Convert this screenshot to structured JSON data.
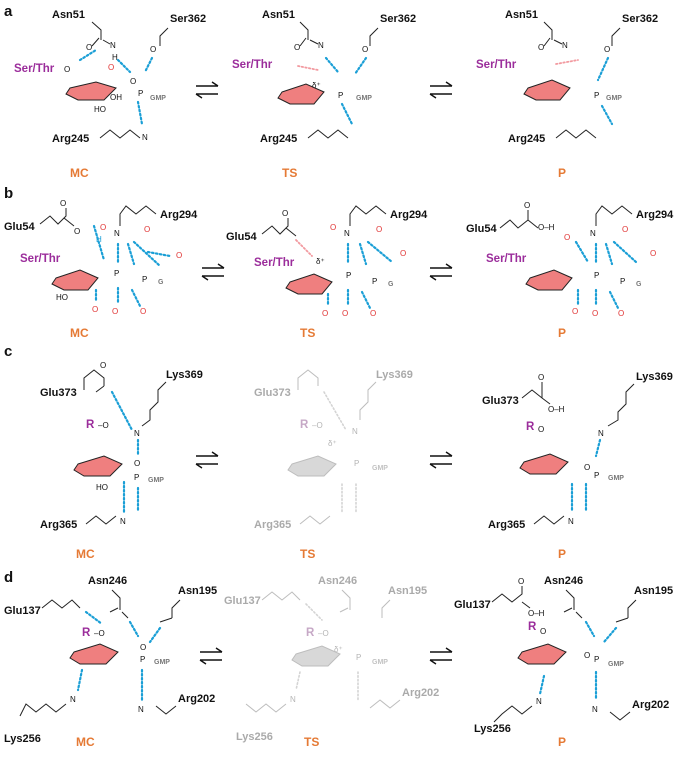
{
  "panels": {
    "a": {
      "letter": "a",
      "states": [
        "MC",
        "TS",
        "P"
      ],
      "residues": {
        "asn": "Asn51",
        "ser": "Ser362",
        "arg": "Arg245",
        "nuc": "Ser/Thr",
        "gmp": "GMP",
        "delta": "δ⁺"
      }
    },
    "b": {
      "letter": "b",
      "states": [
        "MC",
        "TS",
        "P"
      ],
      "residues": {
        "glu": "Glu54",
        "arg": "Arg294",
        "nuc": "Ser/Thr",
        "g": "G",
        "delta": "δ⁺"
      }
    },
    "c": {
      "letter": "c",
      "states": [
        "MC",
        "TS",
        "P"
      ],
      "residues": {
        "glu": "Glu373",
        "lys": "Lys369",
        "arg": "Arg365",
        "nuc": "R",
        "gmp": "GMP",
        "delta": "δ⁺"
      }
    },
    "d": {
      "letter": "d",
      "states": [
        "MC",
        "TS",
        "P"
      ],
      "residues": {
        "asn246": "Asn246",
        "asn195": "Asn195",
        "glu": "Glu137",
        "arg": "Arg202",
        "lys": "Lys256",
        "nuc": "R",
        "gmp": "GMP",
        "delta": "δ⁺"
      }
    }
  },
  "colors": {
    "state_label": "#e57a35",
    "nucleophile": "#9b2d9b",
    "hbond": "#1b9fd6",
    "water_o": "#e03434",
    "sugar": "#ef7f7f"
  }
}
